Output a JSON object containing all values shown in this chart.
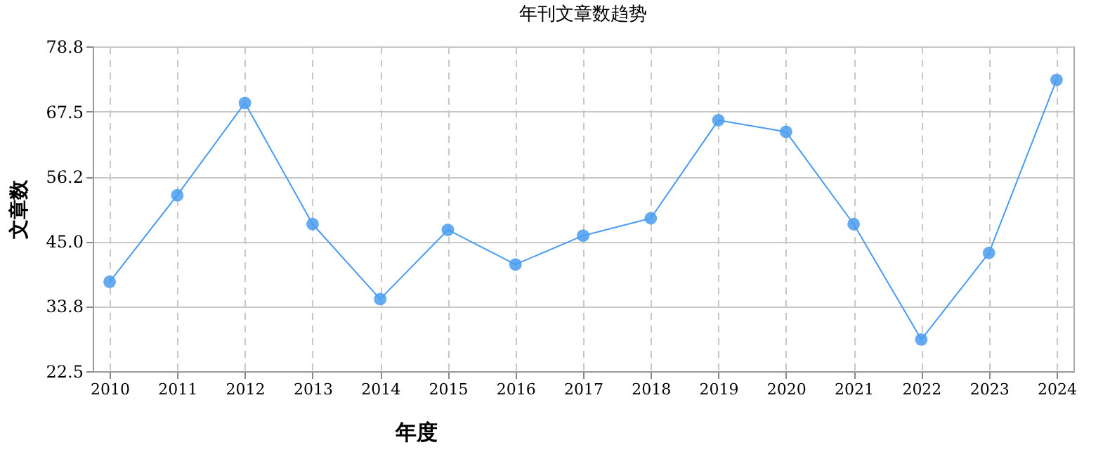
{
  "chart_data": {
    "type": "line",
    "title": "年刊文章数趋势",
    "xlabel": "年度",
    "ylabel": "文章数",
    "categories": [
      "2010",
      "2011",
      "2012",
      "2013",
      "2014",
      "2015",
      "2016",
      "2017",
      "2018",
      "2019",
      "2020",
      "2021",
      "2022",
      "2023",
      "2024"
    ],
    "series": [
      {
        "color": "#4a9cf0",
        "values": [
          38,
          53,
          69,
          48,
          35,
          47,
          41,
          46,
          49,
          66,
          64,
          48,
          28,
          43,
          73
        ]
      }
    ],
    "ylim": [
      22.5,
      78.8
    ],
    "yticks": [
      22.5,
      33.8,
      {
        "value": 45,
        "label": "45.0"
      },
      56.2,
      67.5,
      78.8
    ],
    "grid": true,
    "marker": "circle",
    "line_style": "solid"
  }
}
